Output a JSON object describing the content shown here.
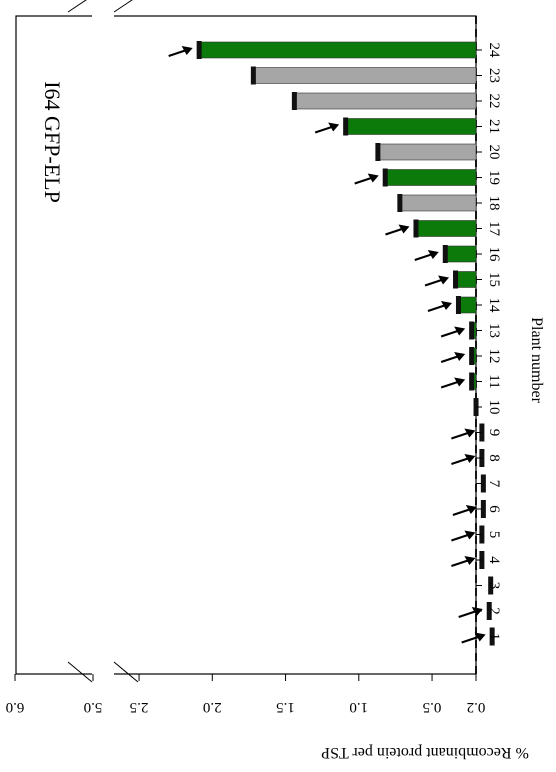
{
  "chart_data": {
    "type": "bar",
    "orientation": "horizontal-bars, figure rotated 90 degrees",
    "title": "I64  GFP-ELP",
    "xlabel": "Plant number",
    "ylabel": "% Recombinant protein per TSP",
    "categories": [
      "1",
      "2",
      "3",
      "4",
      "5",
      "6",
      "7",
      "8",
      "9",
      "10",
      "11",
      "12",
      "13",
      "14",
      "15",
      "16",
      "17",
      "18",
      "19",
      "20",
      "21",
      "22",
      "23",
      "24"
    ],
    "values": [
      0.1,
      0.12,
      0.11,
      0.17,
      0.17,
      0.16,
      0.16,
      0.17,
      0.17,
      0.21,
      0.24,
      0.24,
      0.24,
      0.33,
      0.35,
      0.42,
      0.62,
      0.73,
      0.83,
      0.88,
      1.1,
      1.45,
      1.73,
      2.1
    ],
    "colors": [
      "green",
      "green",
      "gray",
      "lightgreen",
      "lightgreen",
      "lightgreen",
      "gray",
      "lightgreen",
      "lightgreen",
      "gray",
      "green",
      "green",
      "green",
      "green",
      "green",
      "green",
      "green",
      "gray",
      "green",
      "gray",
      "green",
      "gray",
      "gray",
      "green"
    ],
    "arrows": [
      true,
      true,
      false,
      true,
      true,
      true,
      false,
      true,
      true,
      false,
      true,
      true,
      true,
      true,
      true,
      true,
      true,
      false,
      true,
      false,
      true,
      false,
      false,
      true
    ],
    "color_map": {
      "green": "#0b7a0b",
      "lightgreen": "#2cff2c",
      "gray": "#a6a6a6"
    },
    "y_ticks": [
      "0.2",
      "0.5",
      "1.0",
      "1.5",
      "2.0",
      "2.5",
      "5.0",
      "6.0"
    ],
    "y_tick_values": [
      0.2,
      0.5,
      1.0,
      1.5,
      2.0,
      2.5,
      5.0,
      6.0
    ],
    "axis_break": [
      2.5,
      5.0
    ],
    "reference_line": 0.2,
    "grid": false
  }
}
